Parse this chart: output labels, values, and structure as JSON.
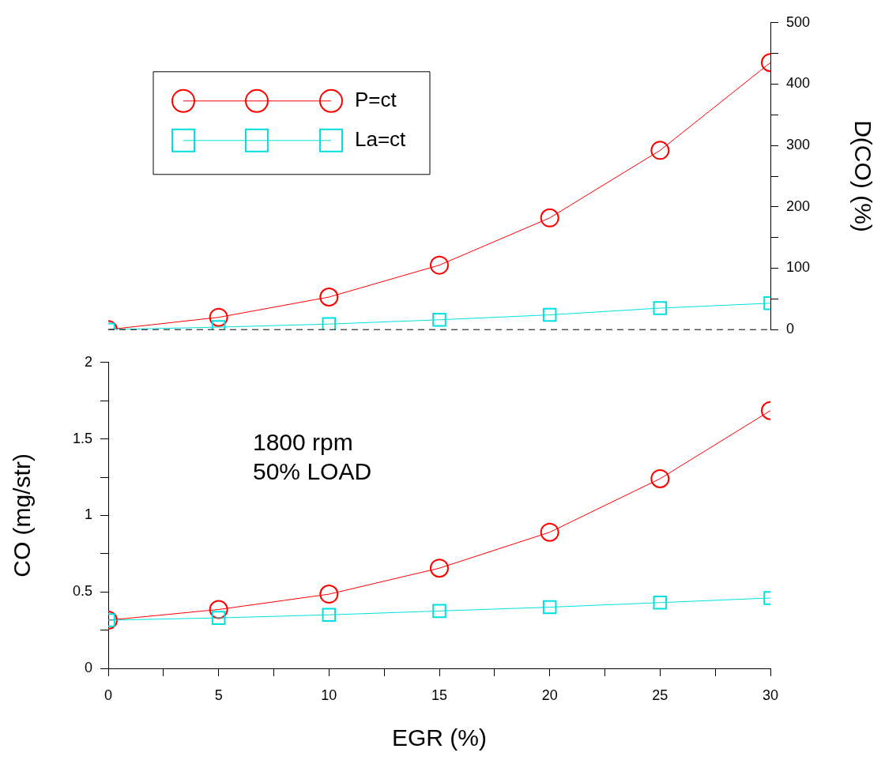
{
  "chart_data": [
    {
      "type": "line",
      "ylabel": "D(CO) (%)",
      "xlim": [
        0,
        30
      ],
      "ylim": [
        0,
        500
      ],
      "yticks": [
        0,
        {
          "value": 50,
          "label": null
        },
        100,
        {
          "value": 150,
          "label": null
        },
        200,
        {
          "value": 250,
          "label": null
        },
        300,
        {
          "value": 350,
          "label": null
        },
        400,
        {
          "value": 450,
          "label": null
        },
        500
      ],
      "tick_labels": "y",
      "grid": false,
      "legend": "top left",
      "ref_lines": [
        {
          "axis": "y",
          "value": 0,
          "color": "#000000",
          "line_style": "dashed"
        }
      ],
      "series": [
        {
          "name": "P=ct",
          "color": "#ff0000",
          "marker": "circle",
          "x": [
            0,
            5,
            10,
            15,
            20,
            25,
            30
          ],
          "values": [
            0,
            20,
            53,
            105,
            182,
            292,
            435
          ]
        },
        {
          "name": "La=ct",
          "color": "#00e0e0",
          "marker": "square",
          "x": [
            0,
            5,
            10,
            15,
            20,
            25,
            30
          ],
          "values": [
            0,
            4,
            9,
            16,
            24,
            35,
            43
          ]
        }
      ]
    },
    {
      "type": "line",
      "xlabel": "EGR (%)",
      "ylabel": "CO (mg/str)",
      "xlim": [
        0,
        30
      ],
      "ylim": [
        0,
        2
      ],
      "xticks": [
        0,
        {
          "value": 2.5,
          "label": null
        },
        5,
        {
          "value": 7.5,
          "label": null
        },
        10,
        {
          "value": 12.5,
          "label": null
        },
        15,
        {
          "value": 17.5,
          "label": null
        },
        20,
        {
          "value": 22.5,
          "label": null
        },
        25,
        {
          "value": 27.5,
          "label": null
        },
        30
      ],
      "yticks": [
        0,
        {
          "value": 0.25,
          "label": null
        },
        0.5,
        {
          "value": 0.75,
          "label": null
        },
        1,
        {
          "value": 1.25,
          "label": null
        },
        1.5,
        {
          "value": 1.75,
          "label": null
        },
        2
      ],
      "grid": false,
      "annotations": [
        "1800 rpm",
        "50% LOAD"
      ],
      "series": [
        {
          "color": "#ff0000",
          "marker": "circle",
          "x": [
            0,
            5,
            10,
            15,
            20,
            25,
            30
          ],
          "values": [
            0.315,
            0.385,
            0.485,
            0.655,
            0.89,
            1.24,
            1.685
          ]
        },
        {
          "color": "#00e0e0",
          "marker": "square",
          "x": [
            0,
            5,
            10,
            15,
            20,
            25,
            30
          ],
          "values": [
            0.315,
            0.33,
            0.35,
            0.375,
            0.4,
            0.43,
            0.46
          ]
        }
      ]
    }
  ]
}
